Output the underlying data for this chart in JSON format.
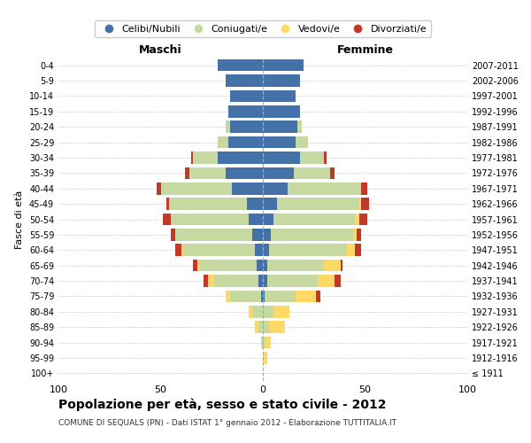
{
  "age_groups": [
    "100+",
    "95-99",
    "90-94",
    "85-89",
    "80-84",
    "75-79",
    "70-74",
    "65-69",
    "60-64",
    "55-59",
    "50-54",
    "45-49",
    "40-44",
    "35-39",
    "30-34",
    "25-29",
    "20-24",
    "15-19",
    "10-14",
    "5-9",
    "0-4"
  ],
  "birth_years": [
    "≤ 1911",
    "1912-1916",
    "1917-1921",
    "1922-1926",
    "1927-1931",
    "1932-1936",
    "1937-1941",
    "1942-1946",
    "1947-1951",
    "1952-1956",
    "1957-1961",
    "1962-1966",
    "1967-1971",
    "1972-1976",
    "1977-1981",
    "1982-1986",
    "1987-1991",
    "1992-1996",
    "1997-2001",
    "2002-2006",
    "2007-2011"
  ],
  "colors": {
    "celibi": "#4472a8",
    "coniugati": "#c5d9a0",
    "vedovi": "#ffd966",
    "divorziati": "#c0392b"
  },
  "maschi": {
    "celibi": [
      0,
      0,
      0,
      0,
      0,
      1,
      2,
      3,
      4,
      5,
      7,
      8,
      15,
      18,
      22,
      17,
      16,
      17,
      16,
      18,
      22
    ],
    "coniugati": [
      0,
      0,
      1,
      2,
      5,
      15,
      22,
      28,
      35,
      38,
      38,
      38,
      35,
      18,
      12,
      5,
      2,
      0,
      0,
      0,
      0
    ],
    "vedovi": [
      0,
      0,
      0,
      2,
      2,
      2,
      3,
      1,
      1,
      0,
      0,
      0,
      0,
      0,
      0,
      0,
      0,
      0,
      0,
      0,
      0
    ],
    "divorziati": [
      0,
      0,
      0,
      0,
      0,
      0,
      2,
      2,
      3,
      2,
      4,
      1,
      2,
      2,
      1,
      0,
      0,
      0,
      0,
      0,
      0
    ]
  },
  "femmine": {
    "celibi": [
      0,
      0,
      0,
      0,
      0,
      1,
      2,
      2,
      3,
      4,
      5,
      7,
      12,
      15,
      18,
      16,
      17,
      18,
      16,
      18,
      20
    ],
    "coniugati": [
      0,
      0,
      1,
      3,
      5,
      15,
      25,
      28,
      38,
      40,
      40,
      40,
      36,
      18,
      12,
      6,
      2,
      0,
      0,
      0,
      0
    ],
    "vedovi": [
      0,
      2,
      3,
      8,
      8,
      10,
      8,
      8,
      4,
      2,
      2,
      1,
      0,
      0,
      0,
      0,
      0,
      0,
      0,
      0,
      0
    ],
    "divorziati": [
      0,
      0,
      0,
      0,
      0,
      2,
      3,
      1,
      3,
      2,
      4,
      4,
      3,
      2,
      1,
      0,
      0,
      0,
      0,
      0,
      0
    ]
  },
  "ylabel_left": "Fasce di età",
  "title": "Popolazione per età, sesso e stato civile - 2012",
  "subtitle": "COMUNE DI SEQUALS (PN) - Dati ISTAT 1° gennaio 2012 - Elaborazione TUTTITALIA.IT",
  "xlim": 100,
  "legend_labels": [
    "Celibi/Nubili",
    "Coniugati/e",
    "Vedovi/e",
    "Divorziati/e"
  ],
  "maschi_label": "Maschi",
  "femmine_label": "Femmine",
  "bg_color": "#ffffff"
}
